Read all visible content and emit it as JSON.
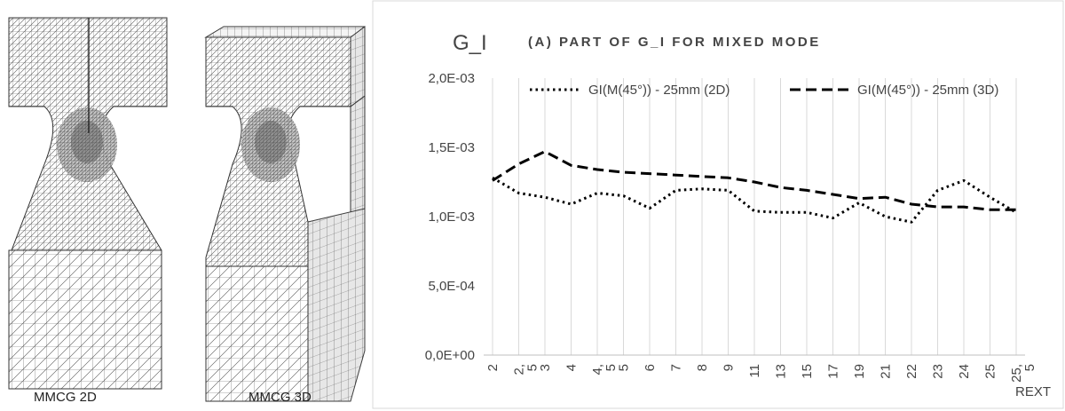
{
  "meshes": {
    "mesh_2d_label": "MMCG 2D",
    "mesh_3d_label": "MMCG 3D"
  },
  "chart_data": {
    "type": "line",
    "title": "(A) PART OF G_I FOR MIXED MODE",
    "ylabel": "G_I",
    "xlabel": "REXT",
    "ylim": [
      0,
      0.002
    ],
    "y_ticks": [
      "0,0E+00",
      "5,0E-04",
      "1,0E-03",
      "1,5E-03",
      "2,0E-03"
    ],
    "y_tick_values": [
      0,
      0.0005,
      0.001,
      0.0015,
      0.002
    ],
    "categories": [
      "2",
      "2,5",
      "3",
      "4",
      "4,5",
      "5",
      "6",
      "7",
      "8",
      "9",
      "11",
      "13",
      "15",
      "17",
      "19",
      "21",
      "22",
      "23",
      "24",
      "25",
      "25,5"
    ],
    "grid": "vertical",
    "legend_position": "top",
    "series": [
      {
        "name": "GI(M(45°)) - 25mm (2D)",
        "style": "dotted",
        "color": "#000000",
        "values": [
          0.00128,
          0.00117,
          0.00114,
          0.00109,
          0.00117,
          0.00115,
          0.00106,
          0.00119,
          0.0012,
          0.00119,
          0.00104,
          0.00103,
          0.00103,
          0.00099,
          0.0011,
          0.001,
          0.00096,
          0.00119,
          0.00126,
          0.00114,
          0.00103
        ]
      },
      {
        "name": "GI(M(45°)) - 25mm (3D)",
        "style": "dashed",
        "color": "#000000",
        "values": [
          0.00126,
          0.00138,
          0.00147,
          0.00137,
          0.00134,
          0.00132,
          0.00131,
          0.0013,
          0.00129,
          0.00128,
          0.00125,
          0.00121,
          0.00119,
          0.00116,
          0.00113,
          0.00114,
          0.00109,
          0.00107,
          0.00107,
          0.00105,
          0.00105
        ]
      }
    ]
  }
}
